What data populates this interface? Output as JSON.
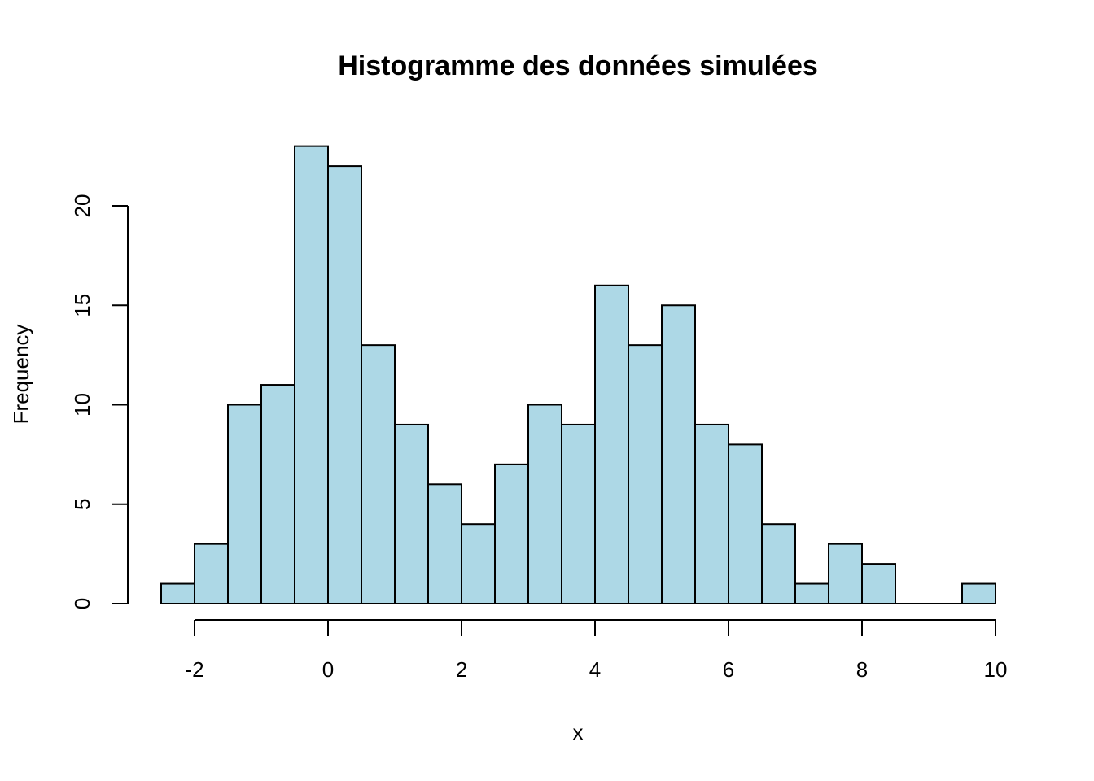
{
  "chart_data": {
    "type": "bar",
    "subtype": "histogram",
    "title": "Histogramme des données simulées",
    "xlabel": "x",
    "ylabel": "Frequency",
    "bin_width": 0.5,
    "bins": [
      {
        "start": -2.5,
        "end": -2.0,
        "count": 1
      },
      {
        "start": -2.0,
        "end": -1.5,
        "count": 3
      },
      {
        "start": -1.5,
        "end": -1.0,
        "count": 10
      },
      {
        "start": -1.0,
        "end": -0.5,
        "count": 11
      },
      {
        "start": -0.5,
        "end": 0.0,
        "count": 23
      },
      {
        "start": 0.0,
        "end": 0.5,
        "count": 22
      },
      {
        "start": 0.5,
        "end": 1.0,
        "count": 13
      },
      {
        "start": 1.0,
        "end": 1.5,
        "count": 9
      },
      {
        "start": 1.5,
        "end": 2.0,
        "count": 6
      },
      {
        "start": 2.0,
        "end": 2.5,
        "count": 4
      },
      {
        "start": 2.5,
        "end": 3.0,
        "count": 7
      },
      {
        "start": 3.0,
        "end": 3.5,
        "count": 10
      },
      {
        "start": 3.5,
        "end": 4.0,
        "count": 9
      },
      {
        "start": 4.0,
        "end": 4.5,
        "count": 16
      },
      {
        "start": 4.5,
        "end": 5.0,
        "count": 13
      },
      {
        "start": 5.0,
        "end": 5.5,
        "count": 15
      },
      {
        "start": 5.5,
        "end": 6.0,
        "count": 9
      },
      {
        "start": 6.0,
        "end": 6.5,
        "count": 8
      },
      {
        "start": 6.5,
        "end": 7.0,
        "count": 4
      },
      {
        "start": 7.0,
        "end": 7.5,
        "count": 1
      },
      {
        "start": 7.5,
        "end": 8.0,
        "count": 3
      },
      {
        "start": 8.0,
        "end": 8.5,
        "count": 2
      },
      {
        "start": 8.5,
        "end": 9.0,
        "count": 0
      },
      {
        "start": 9.0,
        "end": 9.5,
        "count": 0
      },
      {
        "start": 9.5,
        "end": 10.0,
        "count": 1
      }
    ],
    "xlim": [
      -2.5,
      10
    ],
    "ylim": [
      0,
      23
    ],
    "x_ticks": [
      -2,
      0,
      2,
      4,
      6,
      8,
      10
    ],
    "x_tick_labels": [
      "-2",
      "0",
      "2",
      "4",
      "6",
      "8",
      "10"
    ],
    "y_ticks": [
      0,
      5,
      10,
      15,
      20
    ],
    "y_tick_labels": [
      "0",
      "5",
      "10",
      "15",
      "20"
    ],
    "grid": false,
    "legend": "none",
    "colors": {
      "bar_fill": "#add8e6",
      "bar_stroke": "#000000",
      "text": "#000000"
    }
  }
}
